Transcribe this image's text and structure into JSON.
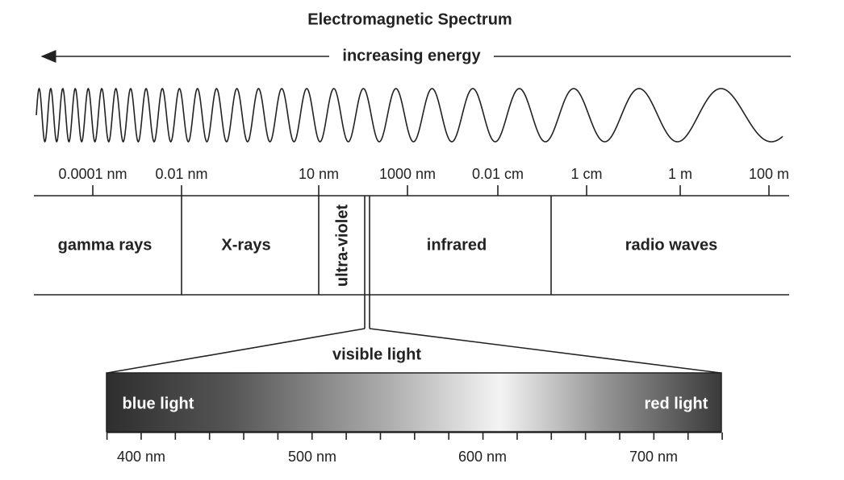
{
  "title": "Electromagnetic Spectrum",
  "energy_label": "increasing energy",
  "scale_labels": [
    "0.0001 nm",
    "0.01 nm",
    "10 nm",
    "1000 nm",
    "0.01 cm",
    "1 cm",
    "1 m",
    "100 m"
  ],
  "regions": [
    "gamma rays",
    "X-rays",
    "ultra-violet",
    "infrared",
    "radio waves"
  ],
  "visible": {
    "label": "visible light",
    "left_label": "blue light",
    "right_label": "red light",
    "axis_labels": [
      "400 nm",
      "500 nm",
      "600 nm",
      "700 nm"
    ]
  }
}
